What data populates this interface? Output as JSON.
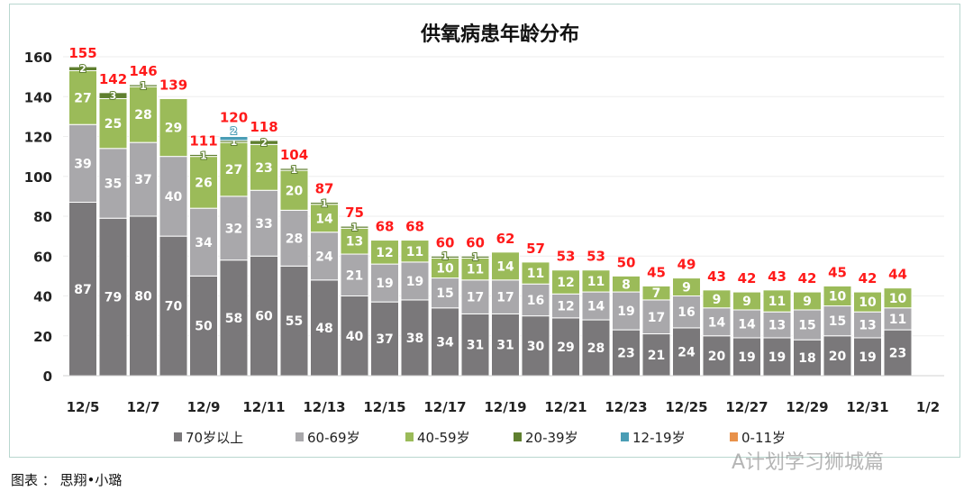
{
  "caption": "图表 ： 思翔•小璐",
  "watermark": "A计划学习狮城篇",
  "chart_data": {
    "type": "bar",
    "stacked": true,
    "title": "供氧病患年龄分布",
    "xlabel": "",
    "ylabel": "",
    "ylim": [
      0,
      160
    ],
    "yticks": [
      0,
      20,
      40,
      60,
      80,
      100,
      120,
      140,
      160
    ],
    "grid": true,
    "legend_position": "bottom",
    "categories": [
      "12/5",
      "12/6",
      "12/7",
      "12/8",
      "12/9",
      "12/10",
      "12/11",
      "12/12",
      "12/13",
      "12/14",
      "12/15",
      "12/16",
      "12/17",
      "12/18",
      "12/19",
      "12/20",
      "12/21",
      "12/22",
      "12/23",
      "12/24",
      "12/25",
      "12/26",
      "12/27",
      "12/28",
      "12/29",
      "12/30",
      "12/31",
      "1/1"
    ],
    "xtick_labels": [
      "12/5",
      "12/7",
      "12/9",
      "12/11",
      "12/13",
      "12/15",
      "12/17",
      "12/19",
      "12/21",
      "12/23",
      "12/25",
      "12/27",
      "12/29",
      "12/31",
      "1/2"
    ],
    "series": [
      {
        "name": "70岁以上",
        "color": "#7a787a",
        "values": [
          87,
          79,
          80,
          70,
          50,
          58,
          60,
          55,
          48,
          40,
          37,
          38,
          34,
          31,
          31,
          30,
          29,
          28,
          23,
          21,
          24,
          20,
          19,
          19,
          18,
          20,
          19,
          23
        ]
      },
      {
        "name": "60-69岁",
        "color": "#a9a8ab",
        "values": [
          39,
          35,
          37,
          40,
          34,
          32,
          33,
          28,
          24,
          21,
          19,
          19,
          15,
          17,
          17,
          16,
          12,
          14,
          19,
          17,
          16,
          14,
          14,
          13,
          15,
          15,
          13,
          11
        ]
      },
      {
        "name": "40-59岁",
        "color": "#9bbb59",
        "values": [
          27,
          25,
          28,
          29,
          26,
          27,
          23,
          20,
          14,
          13,
          12,
          11,
          10,
          11,
          14,
          11,
          12,
          11,
          8,
          7,
          9,
          9,
          9,
          11,
          9,
          10,
          10,
          10
        ]
      },
      {
        "name": "20-39岁",
        "color": "#5f7f2f",
        "values": [
          2,
          3,
          1,
          0,
          1,
          1,
          2,
          1,
          1,
          1,
          0,
          0,
          1,
          1,
          0,
          0,
          0,
          0,
          0,
          0,
          0,
          0,
          0,
          0,
          0,
          0,
          0,
          0
        ]
      },
      {
        "name": "12-19岁",
        "color": "#4a9db5",
        "values": [
          0,
          0,
          0,
          0,
          0,
          2,
          0,
          0,
          0,
          0,
          0,
          0,
          0,
          0,
          0,
          0,
          0,
          0,
          0,
          0,
          0,
          0,
          0,
          0,
          0,
          0,
          0,
          0
        ]
      },
      {
        "name": "0-11岁",
        "color": "#e8914a",
        "values": [
          0,
          0,
          0,
          0,
          0,
          0,
          0,
          0,
          0,
          0,
          0,
          0,
          0,
          0,
          0,
          0,
          0,
          0,
          0,
          0,
          0,
          0,
          0,
          0,
          0,
          0,
          0,
          0
        ]
      }
    ],
    "totals": [
      155,
      142,
      146,
      139,
      111,
      120,
      118,
      104,
      87,
      75,
      68,
      68,
      60,
      60,
      62,
      57,
      53,
      53,
      50,
      45,
      49,
      43,
      42,
      43,
      42,
      45,
      42,
      44
    ],
    "total_label_color": "#ff1a1a"
  }
}
